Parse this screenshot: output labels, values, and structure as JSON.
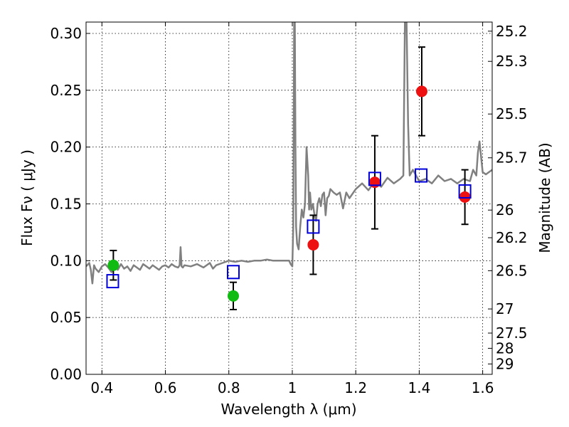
{
  "chart_data": {
    "type": "scatter",
    "xlabel": "Wavelength  λ (μm)",
    "ylabel": "Flux  Fν  ( μJy )",
    "y2label": "Magnitude (AB)",
    "xlim": [
      0.35,
      1.63
    ],
    "ylim": [
      0.0,
      0.31
    ],
    "grid": true,
    "x_ticks": [
      0.4,
      0.6,
      0.8,
      1.0,
      1.2,
      1.4,
      1.6
    ],
    "x_tick_labels": [
      "0.4",
      "0.6",
      "0.8",
      "1",
      "1.2",
      "1.4",
      "1.6"
    ],
    "y_ticks": [
      0.0,
      0.05,
      0.1,
      0.15,
      0.2,
      0.25,
      0.3
    ],
    "y_tick_labels": [
      "0.00",
      "0.05",
      "0.10",
      "0.15",
      "0.20",
      "0.25",
      "0.30"
    ],
    "y2_ticks": [
      25.2,
      25.3,
      25.5,
      25.7,
      26,
      26.2,
      26.5,
      27,
      27.5,
      28,
      29
    ],
    "y2_tick_labels": [
      "25.2",
      "25.3",
      "25.5",
      "25.7",
      "26",
      "26.2",
      "26.5",
      "27",
      "27.5",
      "28",
      "29"
    ],
    "colors": {
      "spectrum": "#808080",
      "green_points": "#11bb11",
      "red_points": "#ee1111",
      "model_squares": "#0000dd",
      "errorbars": "#000000"
    },
    "series": [
      {
        "kind": "line",
        "x": [
          0.35,
          0.36,
          0.365,
          0.37,
          0.375,
          0.38,
          0.39,
          0.4,
          0.41,
          0.42,
          0.43,
          0.44,
          0.45,
          0.46,
          0.47,
          0.48,
          0.49,
          0.5,
          0.51,
          0.52,
          0.53,
          0.54,
          0.55,
          0.56,
          0.57,
          0.58,
          0.59,
          0.6,
          0.61,
          0.62,
          0.63,
          0.64,
          0.645,
          0.648,
          0.651,
          0.655,
          0.66,
          0.68,
          0.7,
          0.72,
          0.74,
          0.75,
          0.76,
          0.78,
          0.8,
          0.82,
          0.84,
          0.86,
          0.88,
          0.9,
          0.92,
          0.94,
          0.96,
          0.98,
          0.99,
          0.995,
          1.0,
          1.003,
          1.006,
          1.008,
          1.01,
          1.012,
          1.015,
          1.02,
          1.025,
          1.03,
          1.035,
          1.04,
          1.045,
          1.05,
          1.053,
          1.056,
          1.06,
          1.065,
          1.07,
          1.075,
          1.08,
          1.085,
          1.09,
          1.095,
          1.1,
          1.105,
          1.11,
          1.115,
          1.12,
          1.13,
          1.14,
          1.15,
          1.16,
          1.17,
          1.18,
          1.2,
          1.22,
          1.24,
          1.26,
          1.28,
          1.3,
          1.32,
          1.34,
          1.35,
          1.355,
          1.36,
          1.365,
          1.37,
          1.38,
          1.4,
          1.42,
          1.44,
          1.46,
          1.48,
          1.5,
          1.52,
          1.54,
          1.56,
          1.57,
          1.58,
          1.585,
          1.59,
          1.6,
          1.61,
          1.63
        ],
        "y": [
          0.095,
          0.098,
          0.092,
          0.08,
          0.096,
          0.093,
          0.09,
          0.095,
          0.097,
          0.094,
          0.09,
          0.096,
          0.092,
          0.097,
          0.093,
          0.095,
          0.091,
          0.096,
          0.094,
          0.092,
          0.097,
          0.095,
          0.093,
          0.096,
          0.094,
          0.092,
          0.095,
          0.096,
          0.094,
          0.097,
          0.095,
          0.094,
          0.096,
          0.112,
          0.095,
          0.094,
          0.096,
          0.095,
          0.097,
          0.094,
          0.098,
          0.093,
          0.096,
          0.098,
          0.1,
          0.099,
          0.1,
          0.099,
          0.1,
          0.1,
          0.101,
          0.1,
          0.1,
          0.1,
          0.1,
          0.097,
          0.095,
          0.13,
          0.31,
          0.31,
          0.2,
          0.13,
          0.115,
          0.11,
          0.13,
          0.145,
          0.138,
          0.15,
          0.2,
          0.175,
          0.145,
          0.16,
          0.145,
          0.15,
          0.14,
          0.135,
          0.15,
          0.155,
          0.148,
          0.158,
          0.16,
          0.14,
          0.155,
          0.157,
          0.163,
          0.16,
          0.158,
          0.16,
          0.146,
          0.16,
          0.155,
          0.163,
          0.168,
          0.162,
          0.17,
          0.165,
          0.173,
          0.168,
          0.172,
          0.175,
          0.31,
          0.31,
          0.22,
          0.175,
          0.18,
          0.17,
          0.172,
          0.168,
          0.175,
          0.17,
          0.172,
          0.168,
          0.172,
          0.17,
          0.18,
          0.175,
          0.195,
          0.205,
          0.178,
          0.176,
          0.18
        ]
      },
      {
        "kind": "points",
        "marker": "circle",
        "color": "green",
        "x": [
          0.436,
          0.814
        ],
        "y": [
          0.096,
          0.069
        ],
        "yerr": [
          0.013,
          0.012
        ]
      },
      {
        "kind": "points",
        "marker": "circle",
        "color": "red",
        "x": [
          1.066,
          1.26,
          1.408,
          1.544
        ],
        "y": [
          0.114,
          0.169,
          0.249,
          0.156
        ],
        "yerr": [
          0.026,
          0.041,
          0.039,
          0.024
        ]
      },
      {
        "kind": "points",
        "marker": "open-square",
        "color": "blue",
        "x": [
          0.434,
          0.814,
          1.066,
          1.26,
          1.406,
          1.544
        ],
        "y": [
          0.082,
          0.09,
          0.13,
          0.172,
          0.175,
          0.161
        ]
      }
    ]
  }
}
